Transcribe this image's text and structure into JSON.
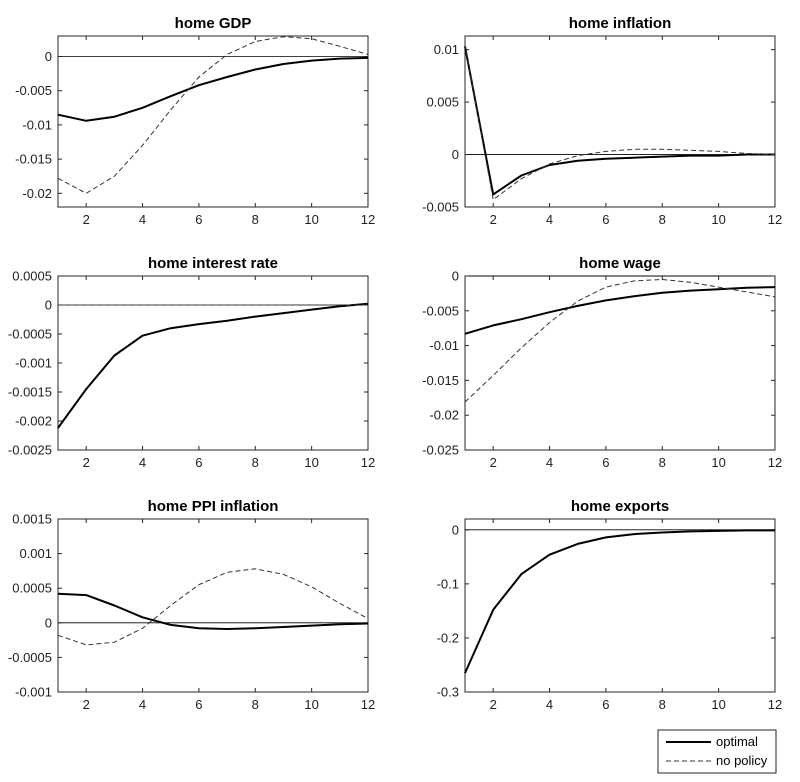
{
  "legend": {
    "items": [
      {
        "label": "optimal",
        "style": "solid"
      },
      {
        "label": "no policy",
        "style": "dashed"
      }
    ]
  },
  "colors": {
    "optimal": "#000000",
    "no_policy": "#333333",
    "zero_line": "#000000",
    "axis": "#262626"
  },
  "chart_data": [
    {
      "type": "line",
      "title": "home GDP",
      "xlim": [
        1,
        12
      ],
      "ylim": [
        -0.022,
        0.003
      ],
      "xticks": [
        2,
        4,
        6,
        8,
        10,
        12
      ],
      "yticks": [
        0,
        -0.005,
        -0.01,
        -0.015,
        -0.02
      ],
      "yticklabels": [
        "0",
        "-0.005",
        "-0.01",
        "-0.015",
        "-0.02"
      ],
      "x": [
        1,
        2,
        3,
        4,
        5,
        6,
        7,
        8,
        9,
        10,
        11,
        12
      ],
      "series": [
        {
          "name": "optimal",
          "values": [
            -0.0085,
            -0.0094,
            -0.0088,
            -0.0075,
            -0.0058,
            -0.0042,
            -0.003,
            -0.0019,
            -0.0011,
            -0.0006,
            -0.0003,
            -0.0002
          ]
        },
        {
          "name": "no policy",
          "values": [
            -0.0178,
            -0.02,
            -0.0175,
            -0.013,
            -0.0078,
            -0.003,
            0.0003,
            0.0022,
            0.0029,
            0.0026,
            0.0015,
            0.0003
          ]
        }
      ]
    },
    {
      "type": "line",
      "title": "home inflation",
      "xlim": [
        1,
        12
      ],
      "ylim": [
        -0.005,
        0.0113
      ],
      "xticks": [
        2,
        4,
        6,
        8,
        10,
        12
      ],
      "yticks": [
        0.01,
        0.005,
        0,
        -0.005
      ],
      "yticklabels": [
        "0.01",
        "0.005",
        "0",
        "-0.005"
      ],
      "x": [
        1,
        2,
        3,
        4,
        5,
        6,
        7,
        8,
        9,
        10,
        11,
        12
      ],
      "series": [
        {
          "name": "optimal",
          "values": [
            0.0103,
            -0.0038,
            -0.002,
            -0.001,
            -0.0006,
            -0.0004,
            -0.0003,
            -0.0002,
            -0.0001,
            -0.0001,
            0,
            0
          ]
        },
        {
          "name": "no policy",
          "values": [
            0.0105,
            -0.0043,
            -0.0023,
            -0.0009,
            -0.0001,
            0.0003,
            0.0005,
            0.0005,
            0.0004,
            0.0003,
            0.0001,
            0
          ]
        }
      ]
    },
    {
      "type": "line",
      "title": "home interest rate",
      "xlim": [
        1,
        12
      ],
      "ylim": [
        -0.0025,
        0.0005
      ],
      "xticks": [
        2,
        4,
        6,
        8,
        10,
        12
      ],
      "yticks": [
        0.0005,
        0,
        -0.0005,
        -0.001,
        -0.0015,
        -0.002,
        -0.0025
      ],
      "yticklabels": [
        "0.0005",
        "0",
        "-0.0005",
        "-0.001",
        "-0.0015",
        "-0.002",
        "-0.0025"
      ],
      "x": [
        1,
        2,
        3,
        4,
        5,
        6,
        7,
        8,
        9,
        10,
        11,
        12
      ],
      "series": [
        {
          "name": "optimal",
          "values": [
            -0.00212,
            -0.00145,
            -0.00087,
            -0.00053,
            -0.0004,
            -0.00033,
            -0.00027,
            -0.0002,
            -0.00014,
            -8e-05,
            -2e-05,
            2e-05
          ]
        },
        {
          "name": "no policy",
          "values": [
            0,
            0,
            0,
            0,
            0,
            0,
            0,
            0,
            0,
            0,
            0,
            0
          ]
        }
      ]
    },
    {
      "type": "line",
      "title": "home wage",
      "xlim": [
        1,
        12
      ],
      "ylim": [
        -0.025,
        0
      ],
      "xticks": [
        2,
        4,
        6,
        8,
        10,
        12
      ],
      "yticks": [
        0,
        -0.005,
        -0.01,
        -0.015,
        -0.02,
        -0.025
      ],
      "yticklabels": [
        "0",
        "-0.005",
        "-0.01",
        "-0.015",
        "-0.02",
        "-0.025"
      ],
      "x": [
        1,
        2,
        3,
        4,
        5,
        6,
        7,
        8,
        9,
        10,
        11,
        12
      ],
      "series": [
        {
          "name": "optimal",
          "values": [
            -0.0083,
            -0.0071,
            -0.0062,
            -0.0052,
            -0.0043,
            -0.0035,
            -0.0029,
            -0.0024,
            -0.0021,
            -0.0019,
            -0.0017,
            -0.0016
          ]
        },
        {
          "name": "no policy",
          "values": [
            -0.0181,
            -0.0143,
            -0.0103,
            -0.0067,
            -0.0036,
            -0.0016,
            -0.0007,
            -0.0005,
            -0.0009,
            -0.0016,
            -0.0023,
            -0.003
          ]
        }
      ]
    },
    {
      "type": "line",
      "title": "home PPI inflation",
      "xlim": [
        1,
        12
      ],
      "ylim": [
        -0.001,
        0.0015
      ],
      "xticks": [
        2,
        4,
        6,
        8,
        10,
        12
      ],
      "yticks": [
        0.0015,
        0.001,
        0.0005,
        0,
        -0.0005,
        -0.001
      ],
      "yticklabels": [
        "0.0015",
        "0.001",
        "0.0005",
        "0",
        "-0.0005",
        "-0.001"
      ],
      "x": [
        1,
        2,
        3,
        4,
        5,
        6,
        7,
        8,
        9,
        10,
        11,
        12
      ],
      "series": [
        {
          "name": "optimal",
          "values": [
            0.00042,
            0.0004,
            0.00025,
            8e-05,
            -3e-05,
            -8e-05,
            -9e-05,
            -8e-05,
            -6e-05,
            -4e-05,
            -2e-05,
            -1e-05
          ]
        },
        {
          "name": "no policy",
          "values": [
            -0.00018,
            -0.00032,
            -0.00028,
            -8e-05,
            0.00025,
            0.00055,
            0.00073,
            0.00078,
            0.0007,
            0.00052,
            0.00028,
            6e-05
          ]
        }
      ]
    },
    {
      "type": "line",
      "title": "home exports",
      "xlim": [
        1,
        12
      ],
      "ylim": [
        -0.3,
        0.02
      ],
      "xticks": [
        2,
        4,
        6,
        8,
        10,
        12
      ],
      "yticks": [
        0,
        -0.1,
        -0.2,
        -0.3
      ],
      "yticklabels": [
        "0",
        "-0.1",
        "-0.2",
        "-0.3"
      ],
      "x": [
        1,
        2,
        3,
        4,
        5,
        6,
        7,
        8,
        9,
        10,
        11,
        12
      ],
      "series": [
        {
          "name": "optimal",
          "values": [
            -0.265,
            -0.148,
            -0.082,
            -0.046,
            -0.026,
            -0.014,
            -0.008,
            -0.005,
            -0.003,
            -0.002,
            -0.001,
            -0.001
          ]
        }
      ]
    }
  ]
}
